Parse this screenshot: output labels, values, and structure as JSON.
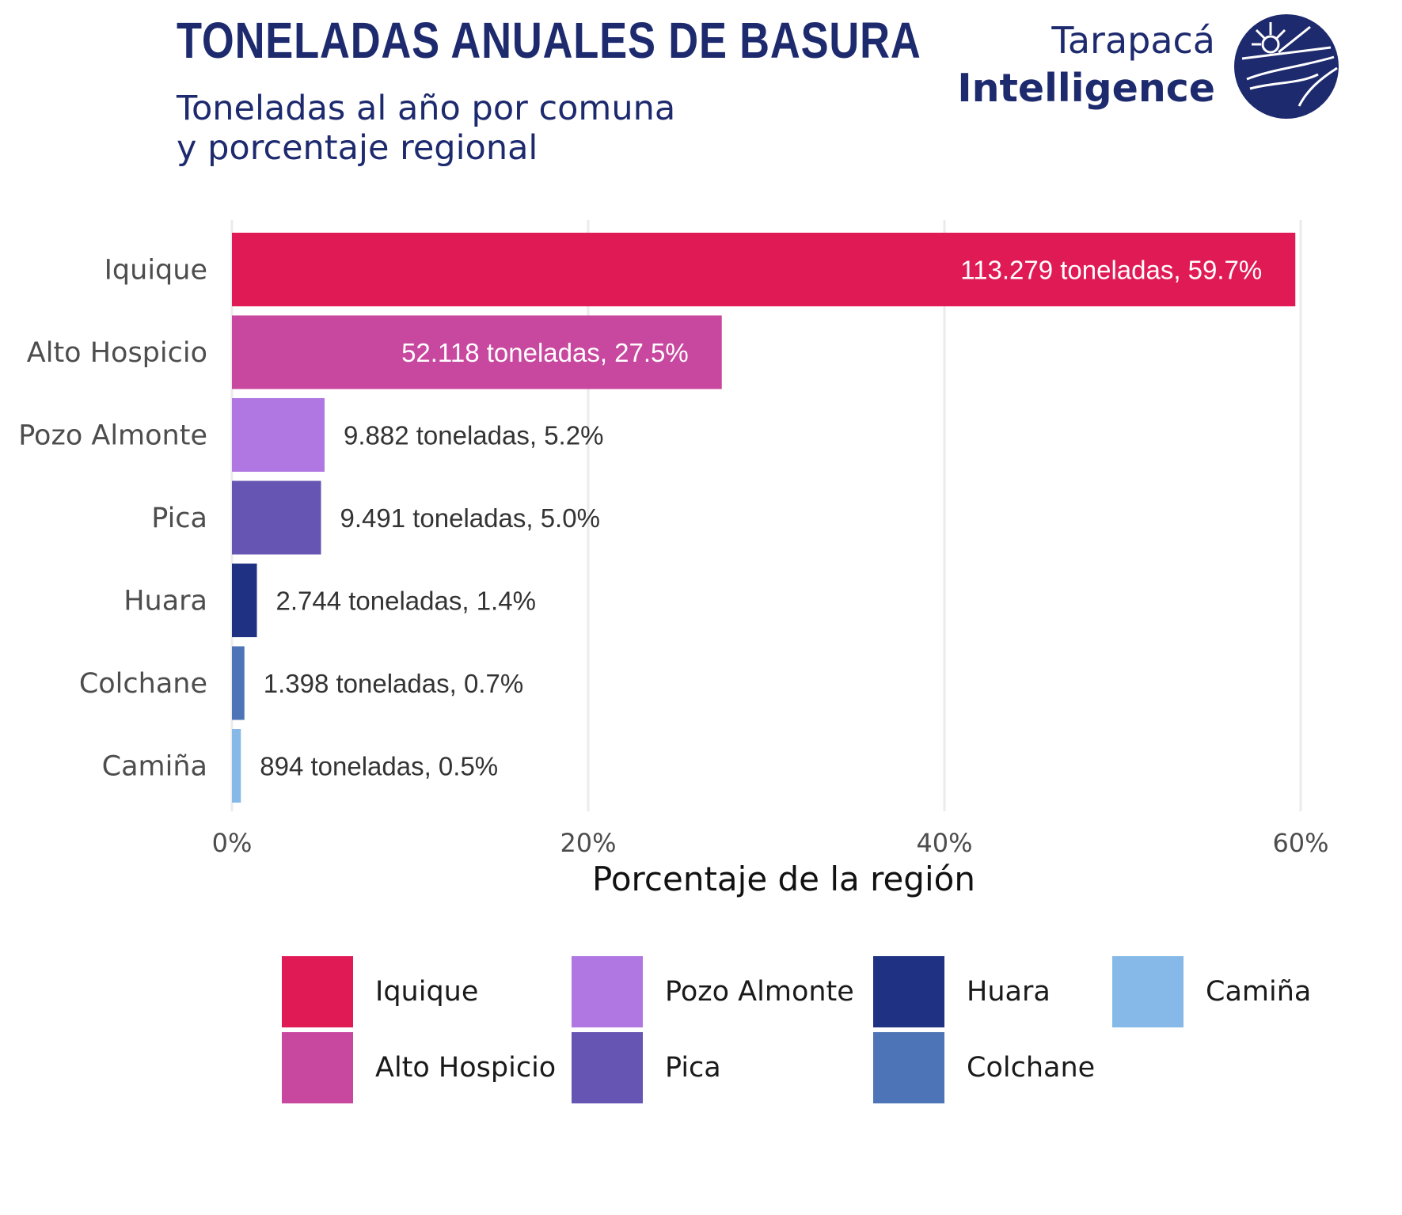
{
  "title": "TONELADAS ANUALES DE BASURA",
  "subtitle_line_1": "Toneladas al año por comuna",
  "subtitle_line_2": "y porcentaje regional",
  "logo": {
    "line_1": "Tarapacá",
    "line_2": "Intelligence",
    "icon": "tarapaca-globe-icon"
  },
  "chart_data": {
    "type": "bar",
    "orientation": "horizontal",
    "categories": [
      "Iquique",
      "Alto Hospicio",
      "Pozo Almonte",
      "Pica",
      "Huara",
      "Colchane",
      "Camiña"
    ],
    "values": [
      59.7,
      27.5,
      5.2,
      5.0,
      1.4,
      0.7,
      0.5
    ],
    "data_labels": [
      "113.279 toneladas, 59.7%",
      "52.118 toneladas, 27.5%",
      "9.882 toneladas, 5.2%",
      "9.491 toneladas, 5.0%",
      "2.744 toneladas, 1.4%",
      "1.398 toneladas, 0.7%",
      "894 toneladas, 0.5%"
    ],
    "colors": [
      "#e01a55",
      "#c8479f",
      "#b077e3",
      "#6655b3",
      "#1e3183",
      "#4d74b6",
      "#86b9e8"
    ],
    "xlabel": "Porcentaje de la región",
    "xticks": [
      "0%",
      "20%",
      "40%",
      "60%"
    ],
    "xtick_values": [
      0,
      20,
      40,
      60
    ],
    "xlim": [
      0,
      60
    ],
    "grid": "vertical",
    "legend": {
      "position": "bottom",
      "entries": [
        "Iquique",
        "Alto Hospicio",
        "Pozo Almonte",
        "Pica",
        "Huara",
        "Colchane",
        "Camiña"
      ]
    }
  }
}
